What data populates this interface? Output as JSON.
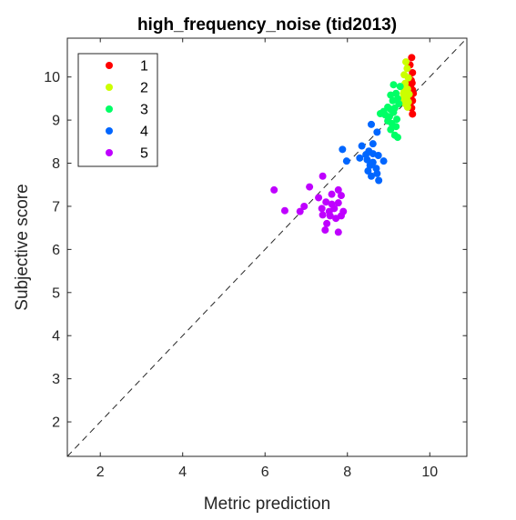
{
  "chart_data": {
    "type": "scatter",
    "title": "high_frequency_noise (tid2013)",
    "xlabel": "Metric prediction",
    "ylabel": "Subjective score",
    "xlim": [
      1.2,
      10.9
    ],
    "ylim": [
      1.2,
      10.9
    ],
    "xticks": [
      "2",
      "4",
      "6",
      "8",
      "10"
    ],
    "yticks": [
      "2",
      "3",
      "4",
      "5",
      "6",
      "7",
      "8",
      "9",
      "10"
    ],
    "grid": false,
    "legend_position": "top-left",
    "reference_line": "identity (dashed)",
    "series": [
      {
        "name": "1",
        "color": "#ff0000",
        "points": [
          [
            9.56,
            10.45
          ],
          [
            9.52,
            10.28
          ],
          [
            9.58,
            10.1
          ],
          [
            9.5,
            9.98
          ],
          [
            9.57,
            9.86
          ],
          [
            9.53,
            9.8
          ],
          [
            9.58,
            9.7
          ],
          [
            9.6,
            9.62
          ],
          [
            9.54,
            9.55
          ],
          [
            9.58,
            9.45
          ],
          [
            9.52,
            9.38
          ],
          [
            9.56,
            9.28
          ],
          [
            9.58,
            9.14
          ],
          [
            9.48,
            9.6
          ],
          [
            9.55,
            9.92
          ]
        ]
      },
      {
        "name": "2",
        "color": "#ccff00",
        "points": [
          [
            9.42,
            10.35
          ],
          [
            9.45,
            10.2
          ],
          [
            9.38,
            10.05
          ],
          [
            9.48,
            9.98
          ],
          [
            9.4,
            9.85
          ],
          [
            9.35,
            9.75
          ],
          [
            9.46,
            9.72
          ],
          [
            9.42,
            9.65
          ],
          [
            9.5,
            9.6
          ],
          [
            9.38,
            9.55
          ],
          [
            9.44,
            9.52
          ],
          [
            9.33,
            9.48
          ],
          [
            9.48,
            9.42
          ],
          [
            9.4,
            9.38
          ],
          [
            9.46,
            9.3
          ],
          [
            9.36,
            9.62
          ]
        ]
      },
      {
        "name": "3",
        "color": "#00ff66",
        "points": [
          [
            9.12,
            9.82
          ],
          [
            9.28,
            9.78
          ],
          [
            9.18,
            9.62
          ],
          [
            9.05,
            9.58
          ],
          [
            9.22,
            9.5
          ],
          [
            9.1,
            9.45
          ],
          [
            8.98,
            9.3
          ],
          [
            9.05,
            9.25
          ],
          [
            9.15,
            9.28
          ],
          [
            8.8,
            9.15
          ],
          [
            8.92,
            9.12
          ],
          [
            9.02,
            9.08
          ],
          [
            9.12,
            9.18
          ],
          [
            9.2,
            9.02
          ],
          [
            8.98,
            8.98
          ],
          [
            9.08,
            8.92
          ],
          [
            9.18,
            8.85
          ],
          [
            9.05,
            8.78
          ],
          [
            9.15,
            8.65
          ],
          [
            9.22,
            8.6
          ],
          [
            9.25,
            9.38
          ],
          [
            8.88,
            9.2
          ]
        ]
      },
      {
        "name": "4",
        "color": "#0066ff",
        "points": [
          [
            8.58,
            8.9
          ],
          [
            8.72,
            8.72
          ],
          [
            8.35,
            8.4
          ],
          [
            7.88,
            8.32
          ],
          [
            8.52,
            8.28
          ],
          [
            8.62,
            8.22
          ],
          [
            8.75,
            8.18
          ],
          [
            8.3,
            8.12
          ],
          [
            8.48,
            8.08
          ],
          [
            8.62,
            8.02
          ],
          [
            7.98,
            8.05
          ],
          [
            8.88,
            8.05
          ],
          [
            8.55,
            7.95
          ],
          [
            8.7,
            7.88
          ],
          [
            8.5,
            7.82
          ],
          [
            8.72,
            7.76
          ],
          [
            8.58,
            7.7
          ],
          [
            8.76,
            7.6
          ],
          [
            8.62,
            8.45
          ],
          [
            8.45,
            8.2
          ]
        ]
      },
      {
        "name": "5",
        "color": "#bf00ff",
        "points": [
          [
            6.22,
            7.38
          ],
          [
            7.08,
            7.45
          ],
          [
            7.4,
            7.7
          ],
          [
            7.78,
            7.38
          ],
          [
            7.62,
            7.28
          ],
          [
            7.85,
            7.25
          ],
          [
            6.95,
            7.0
          ],
          [
            7.48,
            7.1
          ],
          [
            7.62,
            7.05
          ],
          [
            7.78,
            7.08
          ],
          [
            6.48,
            6.9
          ],
          [
            6.85,
            6.88
          ],
          [
            7.38,
            6.95
          ],
          [
            7.56,
            6.88
          ],
          [
            7.9,
            6.88
          ],
          [
            7.4,
            6.8
          ],
          [
            7.58,
            6.78
          ],
          [
            7.72,
            6.72
          ],
          [
            7.85,
            6.78
          ],
          [
            7.5,
            6.6
          ],
          [
            7.46,
            6.45
          ],
          [
            7.78,
            6.4
          ],
          [
            7.3,
            7.2
          ],
          [
            7.68,
            6.95
          ]
        ]
      }
    ]
  }
}
